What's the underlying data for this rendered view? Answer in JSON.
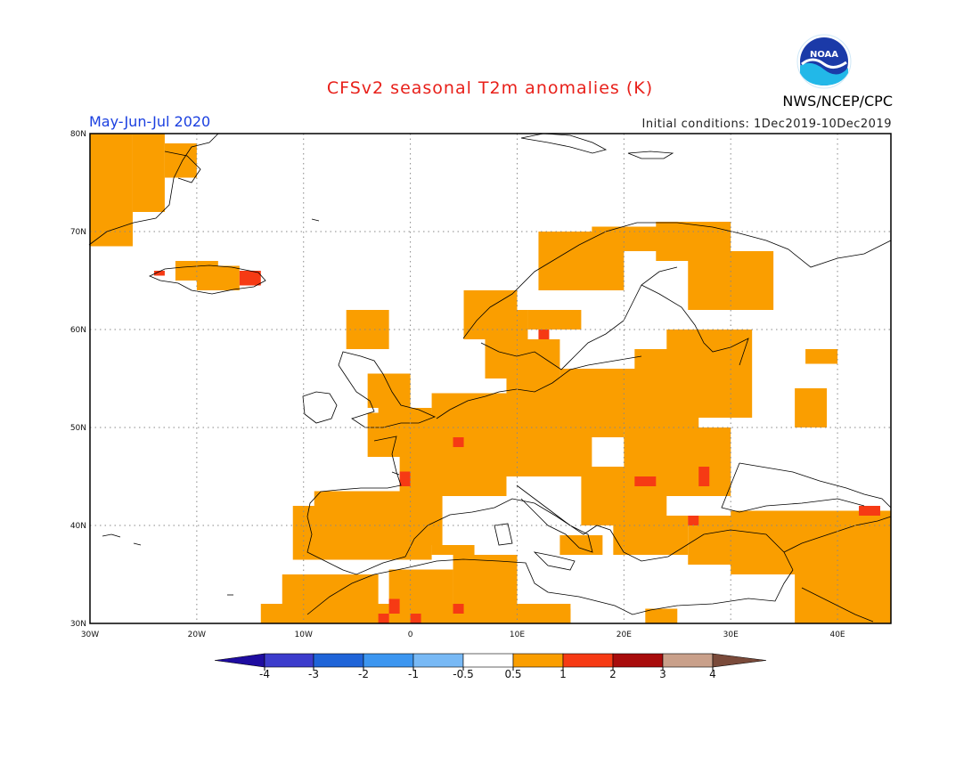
{
  "header": {
    "title": "CFSv2 seasonal T2m anomalies (K)",
    "period": "May-Jun-Jul 2020",
    "initial_conditions": "Initial conditions: 1Dec2019-10Dec2019",
    "agency": "NWS/NCEP/CPC",
    "logo_text": "NOAA"
  },
  "map": {
    "lon_range": [
      -30,
      45
    ],
    "lat_range": [
      30,
      80
    ],
    "lon_ticks": [
      "30W",
      "20W",
      "10W",
      "0",
      "10E",
      "20E",
      "30E",
      "40E"
    ],
    "lat_ticks": [
      "80N",
      "70N",
      "60N",
      "50N",
      "40N",
      "30N"
    ],
    "gridlines": true,
    "colors": {
      "anomaly_0_5_to_1": "#fa9e00",
      "anomaly_1_to_2": "#f63a14",
      "coastline": "#000000"
    }
  },
  "colorbar": {
    "labels": [
      "-4",
      "-3",
      "-2",
      "-1",
      "-0.5",
      "0.5",
      "1",
      "2",
      "3",
      "4"
    ],
    "colors": [
      "#1e0ca0",
      "#3c3ccc",
      "#1f64d8",
      "#3c96f0",
      "#78b9f5",
      "#ffffff",
      "#fa9e00",
      "#f63a14",
      "#a80c0c",
      "#c9a08a",
      "#7a4a3a"
    ]
  }
}
